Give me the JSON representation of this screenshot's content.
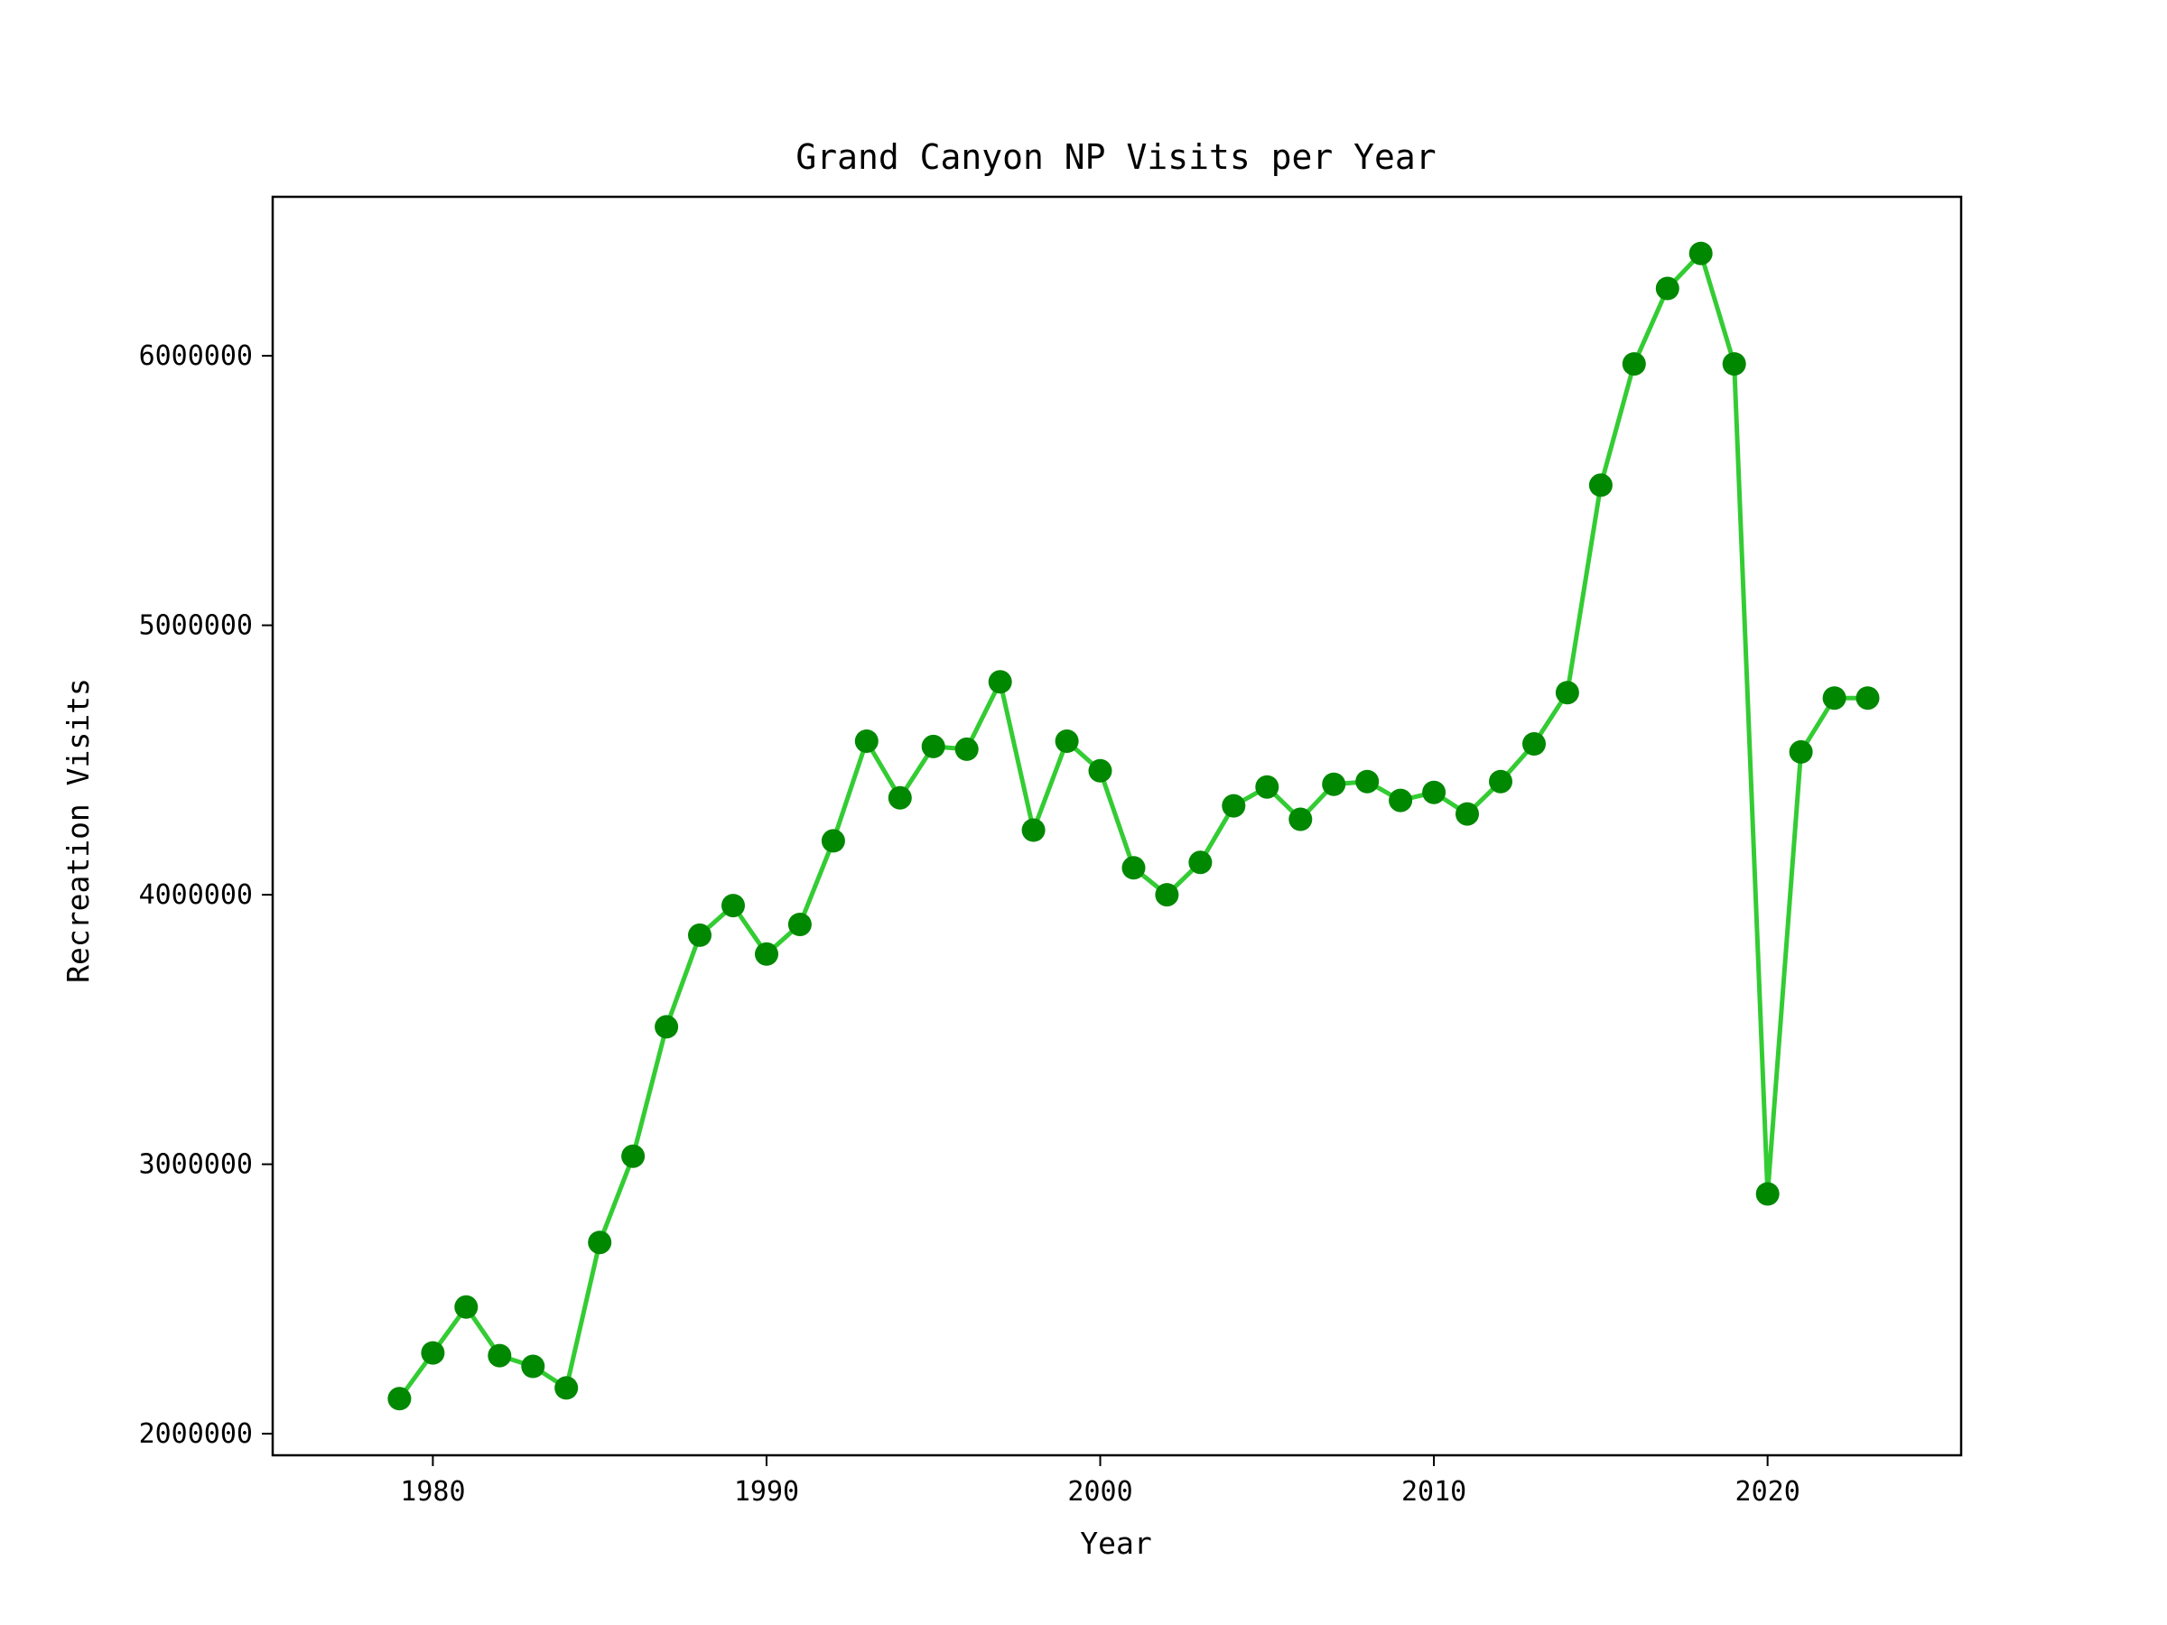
{
  "chart_data": {
    "type": "line",
    "title": "Grand Canyon NP Visits per Year",
    "xlabel": "Year",
    "ylabel": "Recreation Visits",
    "xlim": [
      1975.2,
      2025.8
    ],
    "ylim": [
      1920000,
      6590000
    ],
    "xticks": [
      1980,
      1990,
      2000,
      2010,
      2020
    ],
    "yticks": [
      2000000,
      3000000,
      4000000,
      5000000,
      6000000
    ],
    "grid": false,
    "line_color": "#33cc33",
    "marker_color": "#008800",
    "series": [
      {
        "x": [
          1979,
          1980,
          1981,
          1982,
          1983,
          1984,
          1985,
          1986,
          1987,
          1988,
          1989,
          1990,
          1991,
          1992,
          1993,
          1994,
          1995,
          1996,
          1997,
          1998,
          1999,
          2000,
          2001,
          2002,
          2003,
          2004,
          2005,
          2006,
          2007,
          2008,
          2009,
          2010,
          2011,
          2012,
          2013,
          2014,
          2015,
          2016,
          2017,
          2018,
          2019,
          2020,
          2021,
          2022,
          2023
        ],
        "y": [
          2130000,
          2300000,
          2470000,
          2290000,
          2250000,
          2170000,
          2710000,
          3030000,
          3510000,
          3850000,
          3960000,
          3780000,
          3890000,
          4200000,
          4570000,
          4360000,
          4550000,
          4540000,
          4790000,
          4240000,
          4570000,
          4460000,
          4100000,
          4000000,
          4120000,
          4330000,
          4400000,
          4280000,
          4410000,
          4420000,
          4350000,
          4380000,
          4300000,
          4420000,
          4560000,
          4750000,
          5520000,
          5970000,
          6250000,
          6380000,
          5970000,
          2890000,
          4530000,
          4730000,
          4730000
        ]
      }
    ]
  }
}
